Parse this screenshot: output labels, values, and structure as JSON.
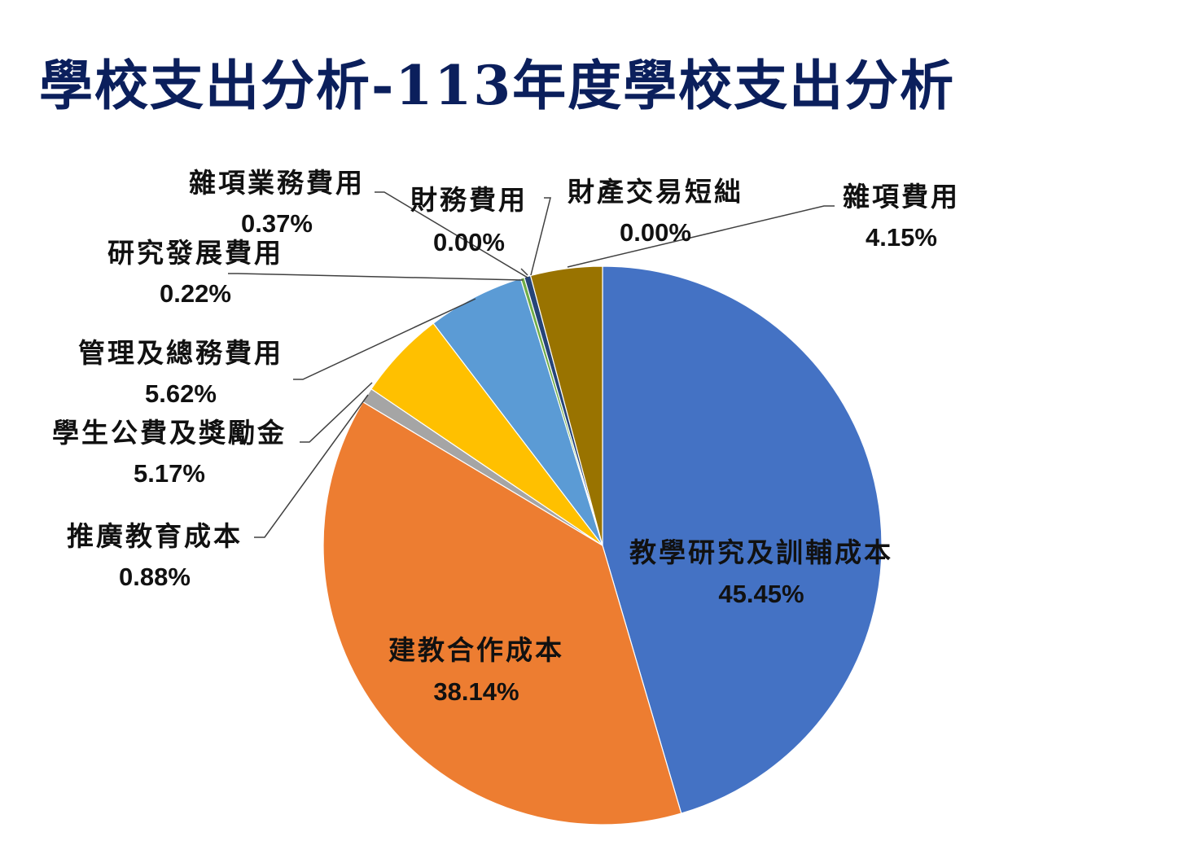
{
  "page": {
    "title": "學校支出分析-113年度學校支出分析"
  },
  "chart_data": {
    "type": "pie",
    "start_angle_deg": 0,
    "direction": "clockwise",
    "slices": [
      {
        "name": "教學研究及訓輔成本",
        "value": 45.45,
        "label": "45.45%",
        "color": "#4472c4"
      },
      {
        "name": "建教合作成本",
        "value": 38.14,
        "label": "38.14%",
        "color": "#ed7d31"
      },
      {
        "name": "推廣教育成本",
        "value": 0.88,
        "label": "0.88%",
        "color": "#a5a5a5"
      },
      {
        "name": "學生公費及獎勵金",
        "value": 5.17,
        "label": "5.17%",
        "color": "#ffc000"
      },
      {
        "name": "管理及總務費用",
        "value": 5.62,
        "label": "5.62%",
        "color": "#5b9bd5"
      },
      {
        "name": "研究發展費用",
        "value": 0.22,
        "label": "0.22%",
        "color": "#70ad47"
      },
      {
        "name": "雜項業務費用",
        "value": 0.37,
        "label": "0.37%",
        "color": "#264478"
      },
      {
        "name": "財務費用",
        "value": 0.0,
        "label": "0.00%",
        "color": "#9e480e"
      },
      {
        "name": "財產交易短絀",
        "value": 0.0,
        "label": "0.00%",
        "color": "#636363"
      },
      {
        "name": "雜項費用",
        "value": 4.15,
        "label": "4.15%",
        "color": "#997300"
      }
    ]
  }
}
